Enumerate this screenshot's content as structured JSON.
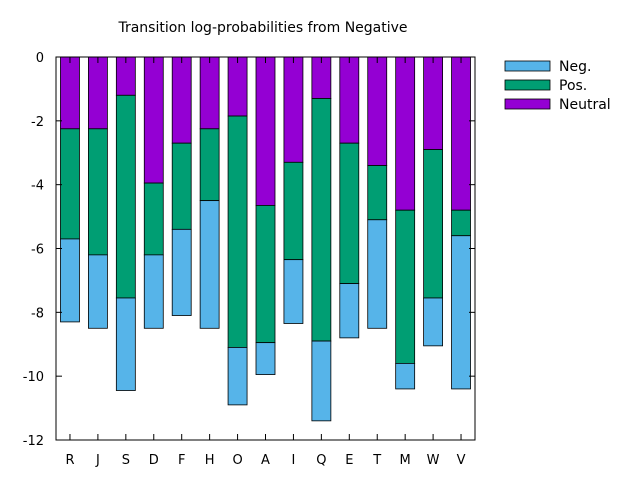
{
  "chart_data": {
    "type": "bar",
    "stacked": true,
    "title": "Transition log-probabilities from Negative",
    "xlabel": "",
    "ylabel": "",
    "ylim": [
      -12,
      0
    ],
    "yticks": [
      0,
      -2,
      -4,
      -6,
      -8,
      -10,
      -12
    ],
    "categories": [
      "R",
      "J",
      "S",
      "D",
      "F",
      "H",
      "O",
      "A",
      "I",
      "Q",
      "E",
      "T",
      "M",
      "W",
      "V"
    ],
    "series": [
      {
        "name": "Neg.",
        "color": "#56b4e9",
        "values": [
          -2.6,
          -2.3,
          -2.9,
          -2.3,
          -2.7,
          -4.0,
          -1.8,
          -1.0,
          -2.0,
          -2.5,
          -1.7,
          -3.4,
          -0.8,
          -1.5,
          -4.8
        ]
      },
      {
        "name": "Pos.",
        "color": "#009e73",
        "values": [
          -3.45,
          -3.95,
          -6.35,
          -2.25,
          -2.7,
          -2.25,
          -7.25,
          -4.3,
          -3.05,
          -7.6,
          -4.4,
          -1.7,
          -4.8,
          -4.65,
          -0.8
        ]
      },
      {
        "name": "Neutral",
        "color": "#9400d3",
        "values": [
          -2.25,
          -2.25,
          -1.2,
          -3.95,
          -2.7,
          -2.25,
          -1.85,
          -4.65,
          -3.3,
          -1.3,
          -2.7,
          -3.4,
          -4.8,
          -2.9,
          -4.8
        ]
      }
    ],
    "legend": {
      "position": "top-right",
      "entries": [
        "Neg.",
        "Pos.",
        "Neutral"
      ]
    },
    "grid": false
  }
}
